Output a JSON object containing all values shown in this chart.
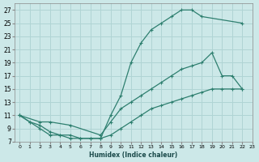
{
  "xlabel": "Humidex (Indice chaleur)",
  "bg_color": "#cce8e8",
  "grid_color": "#b0d4d4",
  "line_color": "#2e7f6f",
  "xlim": [
    -0.5,
    23
  ],
  "ylim": [
    7,
    28
  ],
  "xticks": [
    0,
    1,
    2,
    3,
    4,
    5,
    6,
    7,
    8,
    9,
    10,
    11,
    12,
    13,
    14,
    15,
    16,
    17,
    18,
    19,
    20,
    21,
    22,
    23
  ],
  "yticks": [
    7,
    9,
    11,
    13,
    15,
    17,
    19,
    21,
    23,
    25,
    27
  ],
  "curve1_x": [
    0,
    1,
    2,
    3,
    4,
    5,
    6,
    7,
    8,
    9,
    10,
    11,
    12,
    13,
    14,
    15,
    16,
    17,
    18,
    22
  ],
  "curve1_y": [
    11,
    10,
    9,
    8,
    8,
    7.5,
    7.5,
    7.5,
    7.5,
    11,
    14,
    19,
    22,
    24,
    25,
    26,
    27,
    27,
    26,
    25
  ],
  "curve2_x": [
    0,
    2,
    3,
    5,
    8,
    9,
    10,
    11,
    12,
    13,
    14,
    15,
    16,
    17,
    18,
    19,
    20,
    21,
    22
  ],
  "curve2_y": [
    11,
    10,
    10,
    9.5,
    8,
    10,
    12,
    13,
    14,
    15,
    16,
    17,
    18,
    18.5,
    19,
    20.5,
    17,
    17,
    15
  ],
  "curve3_x": [
    0,
    1,
    2,
    3,
    4,
    5,
    6,
    7,
    8,
    9,
    10,
    11,
    12,
    13,
    14,
    15,
    16,
    17,
    18,
    19,
    20,
    21,
    22
  ],
  "curve3_y": [
    11,
    10,
    9.5,
    8.5,
    8,
    8,
    7.5,
    7.5,
    7.5,
    8,
    9,
    10,
    11,
    12,
    12.5,
    13,
    13.5,
    14,
    14.5,
    15,
    15,
    15,
    15
  ]
}
